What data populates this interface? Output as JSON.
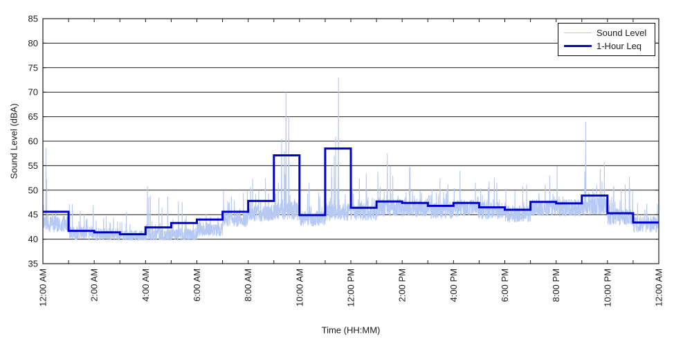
{
  "figure": {
    "xlabel": "Time (HH:MM)",
    "ylabel": "Sound Level (dBA)",
    "legend": {
      "position": "top-right-inside",
      "entries": [
        {
          "label": "Sound Level",
          "color": "#b6c9f2",
          "thickness": 1.5
        },
        {
          "label": "1-Hour Leq",
          "color": "#0000cc",
          "thickness": 3
        }
      ]
    },
    "colors": {
      "sound_level_line": "#b6c9f2",
      "leq_line": "#0000cc",
      "grid_and_box": "#1a1a1a",
      "background": "#ffffff"
    }
  },
  "chart_data": {
    "type": "line",
    "title": "",
    "xlabel": "Time (HH:MM)",
    "ylabel": "Sound Level (dBA)",
    "x_hours_range": [
      0,
      24
    ],
    "ylim": [
      35,
      85
    ],
    "yticks": [
      35,
      40,
      45,
      50,
      55,
      60,
      65,
      70,
      75,
      80,
      85
    ],
    "xtick_labels": [
      "12:00 AM",
      "2:00 AM",
      "4:00 AM",
      "6:00 AM",
      "8:00 AM",
      "10:00 AM",
      "12:00 PM",
      "2:00 PM",
      "4:00 PM",
      "6:00 PM",
      "8:00 PM",
      "10:00 PM",
      "12:00 AM"
    ],
    "xtick_label_every_hours": 2,
    "minor_xtick_every_hours": 1,
    "grid": "horizontal-solid-every-5dBA",
    "legend_position": "top-right inside plot",
    "series": [
      {
        "name": "1-Hour Leq",
        "type": "step",
        "color": "#0000cc",
        "hour_start": [
          0,
          1,
          2,
          3,
          4,
          5,
          6,
          7,
          8,
          9,
          10,
          11,
          12,
          13,
          14,
          15,
          16,
          17,
          18,
          19,
          20,
          21,
          22,
          23
        ],
        "values_dba": [
          45.6,
          41.7,
          41.4,
          41.0,
          42.4,
          43.3,
          44.0,
          45.6,
          47.8,
          57.1,
          44.9,
          58.5,
          46.4,
          47.7,
          47.4,
          46.8,
          47.4,
          46.5,
          46.0,
          47.6,
          47.3,
          48.9,
          45.3,
          43.4
        ]
      },
      {
        "name": "Sound Level",
        "type": "noisy-fast-samples",
        "color": "#b6c9f2",
        "note": "hourly_noise rows = [baseline_dba, band_width_dba, spike_probability, typical_spike_max_dba]",
        "hourly_noise": [
          [
            43.2,
            3.5,
            0.05,
            53.0
          ],
          [
            41.3,
            2.8,
            0.04,
            48.0
          ],
          [
            41.0,
            2.5,
            0.03,
            46.5
          ],
          [
            40.6,
            2.5,
            0.04,
            47.0
          ],
          [
            40.8,
            2.8,
            0.05,
            51.0
          ],
          [
            40.8,
            2.8,
            0.05,
            48.5
          ],
          [
            42.0,
            3.0,
            0.05,
            48.5
          ],
          [
            44.0,
            3.2,
            0.05,
            50.5
          ],
          [
            45.3,
            3.5,
            0.06,
            53.0
          ],
          [
            45.8,
            3.8,
            0.1,
            66.0
          ],
          [
            44.2,
            3.2,
            0.05,
            52.0
          ],
          [
            45.5,
            3.6,
            0.09,
            62.0
          ],
          [
            45.6,
            3.6,
            0.07,
            54.0
          ],
          [
            46.4,
            3.8,
            0.07,
            56.0
          ],
          [
            46.4,
            3.8,
            0.07,
            55.0
          ],
          [
            45.9,
            3.6,
            0.06,
            53.0
          ],
          [
            46.3,
            3.6,
            0.07,
            54.0
          ],
          [
            45.8,
            3.6,
            0.06,
            53.0
          ],
          [
            45.2,
            3.5,
            0.06,
            52.0
          ],
          [
            46.4,
            3.6,
            0.06,
            54.0
          ],
          [
            46.4,
            3.6,
            0.06,
            55.0
          ],
          [
            46.8,
            3.8,
            0.07,
            58.0
          ],
          [
            44.6,
            3.6,
            0.06,
            54.0
          ],
          [
            43.0,
            3.4,
            0.05,
            49.5
          ]
        ],
        "notable_peaks": [
          {
            "t_hours": 0.12,
            "dba": 58.6
          },
          {
            "t_hours": 4.07,
            "dba": 50.8
          },
          {
            "t_hours": 9.3,
            "dba": 60.5
          },
          {
            "t_hours": 9.47,
            "dba": 70.0
          },
          {
            "t_hours": 9.58,
            "dba": 65.0
          },
          {
            "t_hours": 11.35,
            "dba": 57.0
          },
          {
            "t_hours": 11.52,
            "dba": 73.0
          },
          {
            "t_hours": 13.42,
            "dba": 57.5
          },
          {
            "t_hours": 21.15,
            "dba": 64.0
          }
        ]
      }
    ]
  }
}
